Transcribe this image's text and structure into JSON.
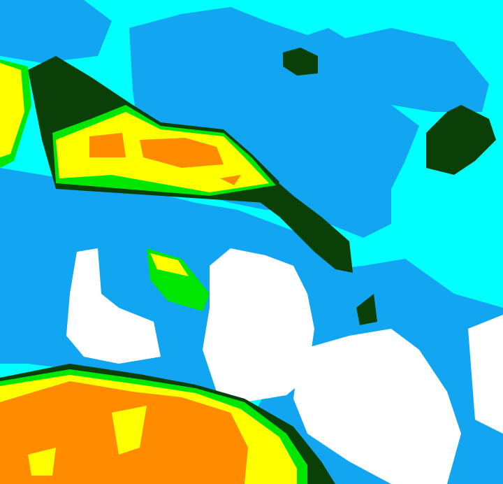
{
  "map": {
    "type": "classified-raster",
    "colors": {
      "background": "#00ffff",
      "class_blue": "#12a6f2",
      "class_white": "#ffffff",
      "class_dark_green": "#0b3f08",
      "class_green": "#00e600",
      "class_yellow": "#ffff00",
      "class_orange": "#ff8c00"
    }
  }
}
